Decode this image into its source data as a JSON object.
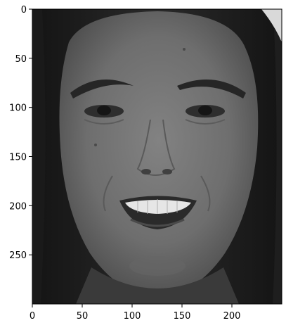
{
  "figure": {
    "kind": "grayscale image plot (matplotlib imshow)",
    "image_subject": "face",
    "colormap": "gray"
  },
  "axes": {
    "x": {
      "range": [
        0,
        250
      ],
      "ticks": [
        0,
        50,
        100,
        150,
        200
      ]
    },
    "y": {
      "range": [
        0,
        300
      ],
      "inverted": true,
      "ticks": [
        0,
        50,
        100,
        150,
        200,
        250
      ]
    }
  },
  "colors": {
    "frame": "#000000",
    "background": "#ffffff",
    "hair": "#1c1c1c",
    "skin": "#727272",
    "top_right_background": "#d9d9d9"
  }
}
